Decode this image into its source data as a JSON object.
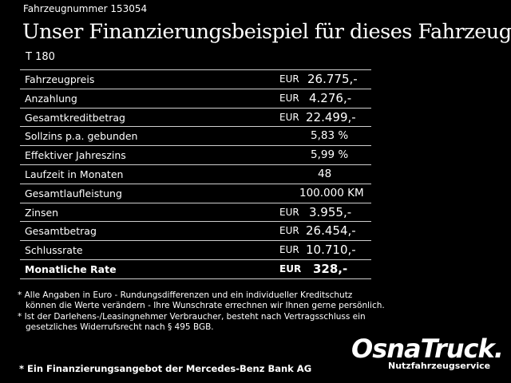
{
  "header": {
    "vehicle_number": "Fahrzeugnummer 153054",
    "title": "Unser Finanzierungsbeispiel für dieses Fahrzeug.*",
    "model": "T 180"
  },
  "rows": [
    {
      "label": "Fahrzeugpreis",
      "currency": "EUR",
      "value": "26.775,-"
    },
    {
      "label": "Anzahlung",
      "currency": "EUR",
      "value": "4.276,-"
    },
    {
      "label": "Gesamtkreditbetrag",
      "currency": "EUR",
      "value": "22.499,-"
    },
    {
      "label": "Sollzins p.a. gebunden",
      "currency": "",
      "value": "5,83 %"
    },
    {
      "label": "Effektiver Jahreszins",
      "currency": "",
      "value": "5,99 %"
    },
    {
      "label": "Laufzeit in Monaten",
      "currency": "",
      "value": "48"
    },
    {
      "label": "Gesamtlaufleistung",
      "currency": "",
      "value": "100.000 KM"
    },
    {
      "label": "Zinsen",
      "currency": "EUR",
      "value": "3.955,-"
    },
    {
      "label": "Gesamtbetrag",
      "currency": "EUR",
      "value": "26.454,-"
    },
    {
      "label": "Schlussrate",
      "currency": "EUR",
      "value": "10.710,-"
    },
    {
      "label": "Monatliche Rate",
      "currency": "EUR",
      "value": "328,-"
    }
  ],
  "notes": {
    "line1": "* Alle Angaben in Euro - Rundungsdifferenzen und ein individueller Kreditschutz",
    "line2": "   können die Werte verändern - Ihre Wunschrate errechnen wir Ihnen gerne persönlich.",
    "line3": "* Ist der Darlehens-/Leasingnehmer Verbraucher, besteht nach Vertragsschluss ein",
    "line4": "   gesetzliches Widerrufsrecht nach § 495 BGB."
  },
  "footer": {
    "text": "* Ein Finanzierungsangebot der Mercedes-Benz Bank AG"
  },
  "logo": {
    "name": "OsnaTruck.",
    "tagline": "Nutzfahrzeugservice"
  }
}
